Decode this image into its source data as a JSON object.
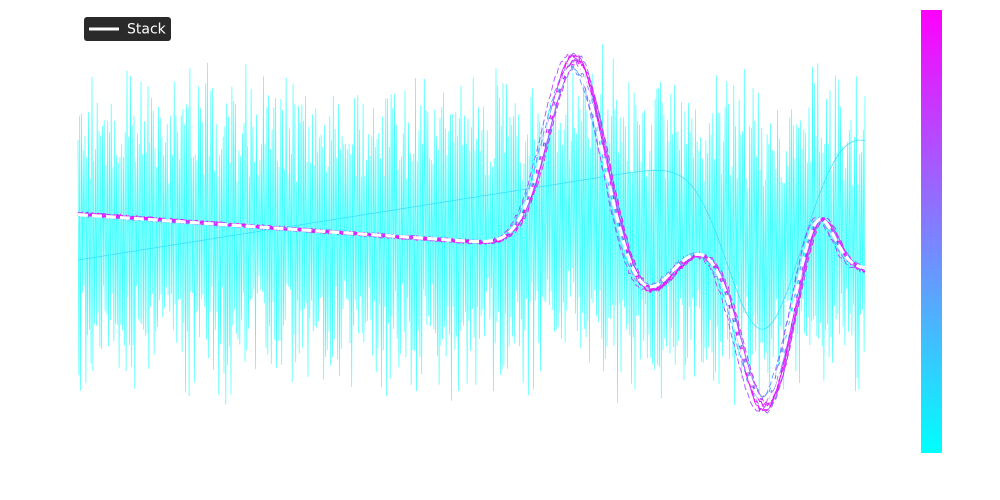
{
  "chart_data": {
    "type": "line",
    "title": "",
    "xlabel": "",
    "ylabel": "",
    "axes_visible": false,
    "grid": false,
    "legend": {
      "placement": "top-left",
      "entries": [
        {
          "label": "Stack",
          "color": "#ffffff",
          "background": "#2a2a2a"
        }
      ]
    },
    "colorbar": {
      "placement": "right",
      "colormap": "cool",
      "low_color": "#00ffff",
      "high_color": "#ff00ff",
      "ticks_visible": false
    },
    "x_range": [
      0,
      1
    ],
    "y_range": [
      -1,
      1
    ],
    "series_groups": [
      {
        "role": "noise trace",
        "count": 1,
        "color": "#00ffff",
        "style": "thin solid"
      },
      {
        "role": "smooth trace (rise then peak near x≈0.78)",
        "count": 1,
        "color": "#33ddff",
        "style": "thin solid"
      },
      {
        "role": "stacked responses",
        "count": 10,
        "color_range": [
          "#55aaff",
          "#ff00ff"
        ],
        "style": "mixed solid/dashed"
      },
      {
        "role": "Stack",
        "count": 1,
        "color": "#ffffff",
        "style": "thick dashed"
      }
    ]
  }
}
